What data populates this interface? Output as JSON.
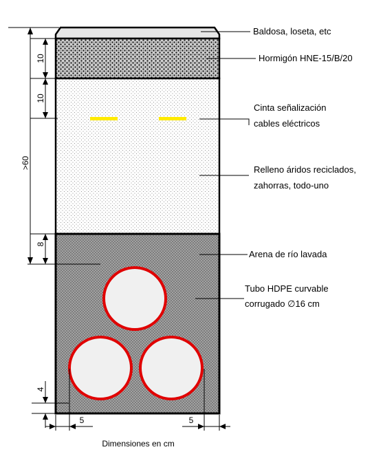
{
  "labels": {
    "tile": "Baldosa, loseta, etc",
    "concrete": "Hormigón HNE-15/B/20",
    "tape_line1": "Cinta señalización",
    "tape_line2": "cables eléctricos",
    "fill_line1": "Relleno áridos reciclados,",
    "fill_line2": "zahorras, todo-uno",
    "sand": "Arena de río lavada",
    "tube_line1": "Tubo HDPE curvable",
    "tube_line2": "corrugado ∅16 cm"
  },
  "dimensions": {
    "concrete_thickness": "10",
    "tape_depth": "10",
    "fill_depth": ">60",
    "sand_over_tube": "8",
    "tube_bed": "4",
    "side_left": "5",
    "side_right": "5",
    "units_note": "Dimensiones en cm"
  },
  "colors": {
    "tape": "#ffea00",
    "tube_border": "#e00000",
    "tube_fill": "#f0f0f0",
    "tile": "#e6e6e6",
    "outline": "#000000"
  }
}
